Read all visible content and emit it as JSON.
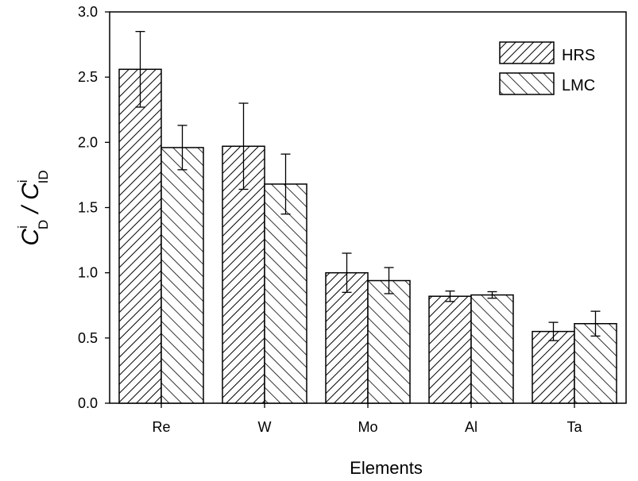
{
  "chart_data": {
    "type": "bar",
    "title": "",
    "xlabel": "Elements",
    "ylabel": {
      "base1": "C",
      "sup1": "i",
      "sub1": "D",
      "sep": " / ",
      "base2": "C",
      "sup2": "i",
      "sub2": "ID"
    },
    "categories": [
      "Re",
      "W",
      "Mo",
      "Al",
      "Ta"
    ],
    "series": [
      {
        "name": "HRS",
        "pattern": "forward-hatch",
        "values": [
          2.56,
          1.97,
          1.0,
          0.82,
          0.55
        ],
        "errors": [
          0.29,
          0.33,
          0.15,
          0.04,
          0.07
        ]
      },
      {
        "name": "LMC",
        "pattern": "backward-hatch",
        "values": [
          1.96,
          1.68,
          0.94,
          0.83,
          0.61
        ],
        "errors": [
          0.17,
          0.23,
          0.1,
          0.025,
          0.095
        ]
      }
    ],
    "ylim": [
      0,
      3.0
    ],
    "yticks": [
      "0.0",
      "0.5",
      "1.0",
      "1.5",
      "2.0",
      "2.5",
      "3.0"
    ],
    "grid": false,
    "legend_position": "top-right"
  }
}
